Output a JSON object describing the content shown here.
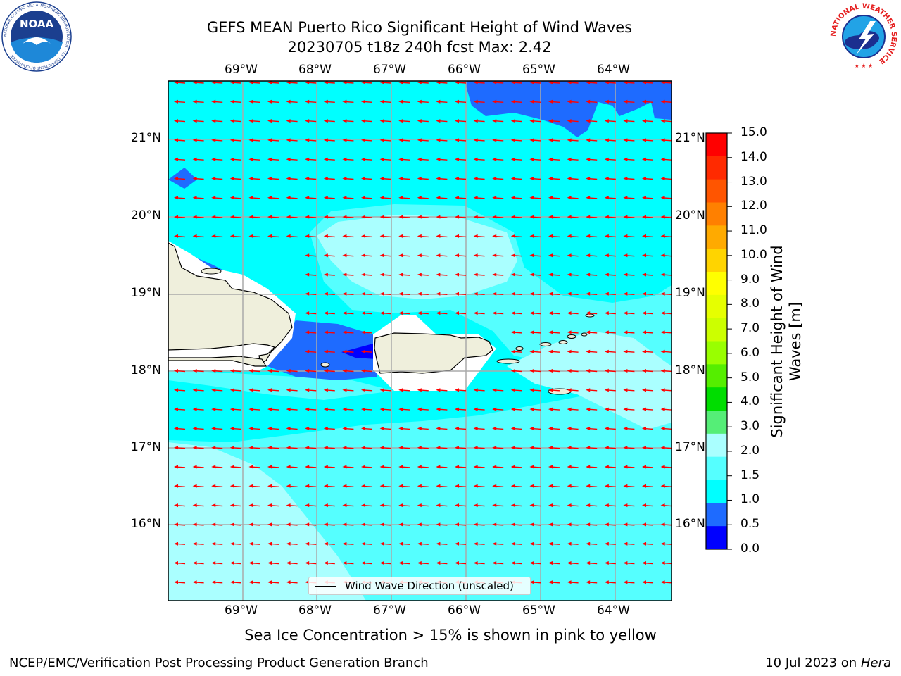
{
  "header": {
    "title_line1": "GEFS MEAN Puerto Rico Significant Height of Wind Waves",
    "title_line2": "20230705 t18z 240h fcst   Max: 2.42"
  },
  "map": {
    "lon_labels": [
      "69°W",
      "68°W",
      "67°W",
      "66°W",
      "65°W",
      "64°W"
    ],
    "lat_labels": [
      "21°N",
      "20°N",
      "19°N",
      "18°N",
      "17°N",
      "16°N"
    ],
    "legend_label": "Wind Wave Direction (unscaled)",
    "arrow_color": "#ff0000",
    "colors": {
      "cyan": "#00ffff",
      "light_cyan": "#55ffff",
      "pale_cyan": "#aaffff",
      "blue_mid": "#1e6bff",
      "blue_deep": "#0000ff",
      "land": "#efefdc"
    }
  },
  "colorbar": {
    "label": "Significant Height of Wind Waves [m]",
    "ticks": [
      "15.0",
      "14.0",
      "13.0",
      "12.0",
      "11.0",
      "10.0",
      "9.0",
      "8.0",
      "7.0",
      "6.0",
      "5.0",
      "4.0",
      "3.0",
      "2.0",
      "1.5",
      "1.0",
      "0.5",
      "0.0"
    ],
    "colors_top_to_bottom": [
      "#ff0000",
      "#ff2a00",
      "#ff5500",
      "#ff8000",
      "#ffaa00",
      "#ffd400",
      "#ffff00",
      "#e6ff00",
      "#ccff00",
      "#99ff00",
      "#55ee00",
      "#00dd00",
      "#55ee77",
      "#aaffff",
      "#55ffff",
      "#00ffff",
      "#1e6bff",
      "#0000ff"
    ]
  },
  "caption": "Sea Ice Concentration > 15% is shown in pink to yellow",
  "footer": {
    "left": "NCEP/EMC/Verification Post Processing Product Generation Branch",
    "right_prefix": "10 Jul 2023 on ",
    "right_host": "Hera"
  },
  "logos": {
    "noaa_text": "NOAA",
    "noaa_ring": "NATIONAL OCEANIC AND ATMOSPHERIC ADMINISTRATION · U.S. DEPARTMENT OF COMMERCE",
    "nws_ring": "NATIONAL WEATHER SERVICE"
  }
}
